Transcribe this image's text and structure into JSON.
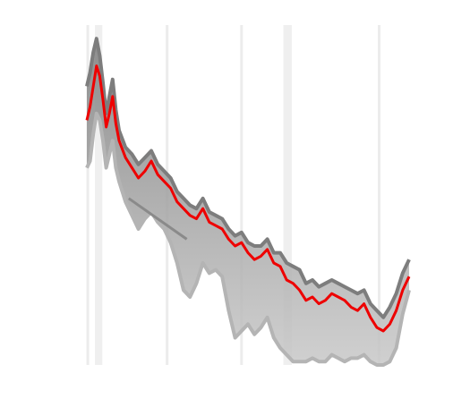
{
  "chart_data": {
    "type": "line",
    "title": "",
    "xlabel": "",
    "ylabel": "",
    "xlim": [
      0,
      100
    ],
    "ylim": [
      0,
      100
    ],
    "grid": "vertical",
    "legend": "none",
    "shaded_bands": [
      {
        "x": [
          2.5,
          4.8
        ]
      },
      {
        "x": [
          61.0,
          63.6
        ]
      }
    ],
    "vertical_lines": [
      0.3,
      24.9,
      48.0,
      90.7
    ],
    "highlight_color": "#ee0000",
    "series_color_dark": "#7d7d7d",
    "series_color_light": "#c8c8c8",
    "series": [
      {
        "role": "highlight",
        "x": [
          0.0,
          1.0,
          2.0,
          3.0,
          4.0,
          5.0,
          6.0,
          7.0,
          8.0,
          9.0,
          10.0,
          12.0,
          14.0,
          16.0,
          18.0,
          20.0,
          22.0,
          24.0,
          26.0,
          28.0,
          30.0,
          32.0,
          34.0,
          36.0,
          38.0,
          40.0,
          42.0,
          44.0,
          46.0,
          48.0,
          50.0,
          52.0,
          54.0,
          56.0,
          58.0,
          60.0,
          62.0,
          64.0,
          66.0,
          68.0,
          70.0,
          72.0,
          74.0,
          76.0,
          78.0,
          80.0,
          82.0,
          84.0,
          86.0,
          88.0,
          90.0,
          92.0,
          94.0,
          96.0,
          98.0,
          100.0
        ],
        "y": [
          72,
          76,
          82,
          88,
          85,
          78,
          70,
          74,
          79,
          71,
          66,
          61,
          58,
          55,
          57,
          60,
          56,
          54,
          52,
          48,
          46,
          44,
          43,
          46,
          42,
          41,
          40,
          37,
          35,
          36,
          33,
          31,
          32,
          34,
          30,
          29,
          25,
          24,
          22,
          19,
          20,
          18,
          19,
          21,
          20,
          19,
          17,
          16,
          18,
          14,
          11,
          10,
          12,
          16,
          22,
          26
        ]
      },
      {
        "role": "upper-envelope",
        "x": [
          0.0,
          1.0,
          2.0,
          3.0,
          4.0,
          5.0,
          6.0,
          7.0,
          8.0,
          9.0,
          10.0,
          12.0,
          14.0,
          16.0,
          18.0,
          20.0,
          22.0,
          24.0,
          26.0,
          28.0,
          30.0,
          32.0,
          34.0,
          36.0,
          38.0,
          40.0,
          42.0,
          44.0,
          46.0,
          48.0,
          50.0,
          52.0,
          54.0,
          56.0,
          58.0,
          60.0,
          62.0,
          64.0,
          66.0,
          68.0,
          70.0,
          72.0,
          74.0,
          76.0,
          78.0,
          80.0,
          82.0,
          84.0,
          86.0,
          88.0,
          90.0,
          92.0,
          94.0,
          96.0,
          98.0,
          100.0
        ],
        "y": [
          82,
          86,
          92,
          96,
          91,
          83,
          74,
          79,
          84,
          75,
          69,
          64,
          62,
          59,
          61,
          63,
          59,
          57,
          55,
          51,
          49,
          47,
          46,
          49,
          45,
          44,
          43,
          40,
          38,
          39,
          36,
          35,
          35,
          37,
          33,
          33,
          30,
          29,
          28,
          24,
          25,
          23,
          24,
          25,
          24,
          23,
          22,
          21,
          22,
          18,
          16,
          14,
          17,
          21,
          27,
          31
        ]
      },
      {
        "role": "lower-envelope",
        "x": [
          0.0,
          1.0,
          2.0,
          3.0,
          4.0,
          5.0,
          6.0,
          7.0,
          8.0,
          9.0,
          10.0,
          12.0,
          14.0,
          16.0,
          18.0,
          20.0,
          22.0,
          24.0,
          26.0,
          28.0,
          30.0,
          32.0,
          34.0,
          36.0,
          38.0,
          40.0,
          42.0,
          44.0,
          46.0,
          48.0,
          50.0,
          52.0,
          54.0,
          56.0,
          58.0,
          60.0,
          62.0,
          64.0,
          66.0,
          68.0,
          70.0,
          72.0,
          74.0,
          76.0,
          78.0,
          80.0,
          82.0,
          84.0,
          86.0,
          88.0,
          90.0,
          92.0,
          94.0,
          96.0,
          98.0,
          100.0
        ],
        "y": [
          58,
          60,
          68,
          74,
          72,
          66,
          58,
          62,
          66,
          58,
          54,
          48,
          44,
          40,
          43,
          45,
          42,
          40,
          36,
          30,
          22,
          20,
          24,
          30,
          27,
          28,
          26,
          16,
          8,
          10,
          12,
          9,
          11,
          14,
          8,
          5,
          3,
          1,
          1,
          1,
          2,
          1,
          1,
          3,
          2,
          1,
          2,
          2,
          3,
          1,
          0,
          0,
          1,
          5,
          15,
          22
        ]
      },
      {
        "role": "outlier-segment",
        "x": [
          13.0,
          31.0
        ],
        "y": [
          49,
          37
        ]
      }
    ]
  }
}
